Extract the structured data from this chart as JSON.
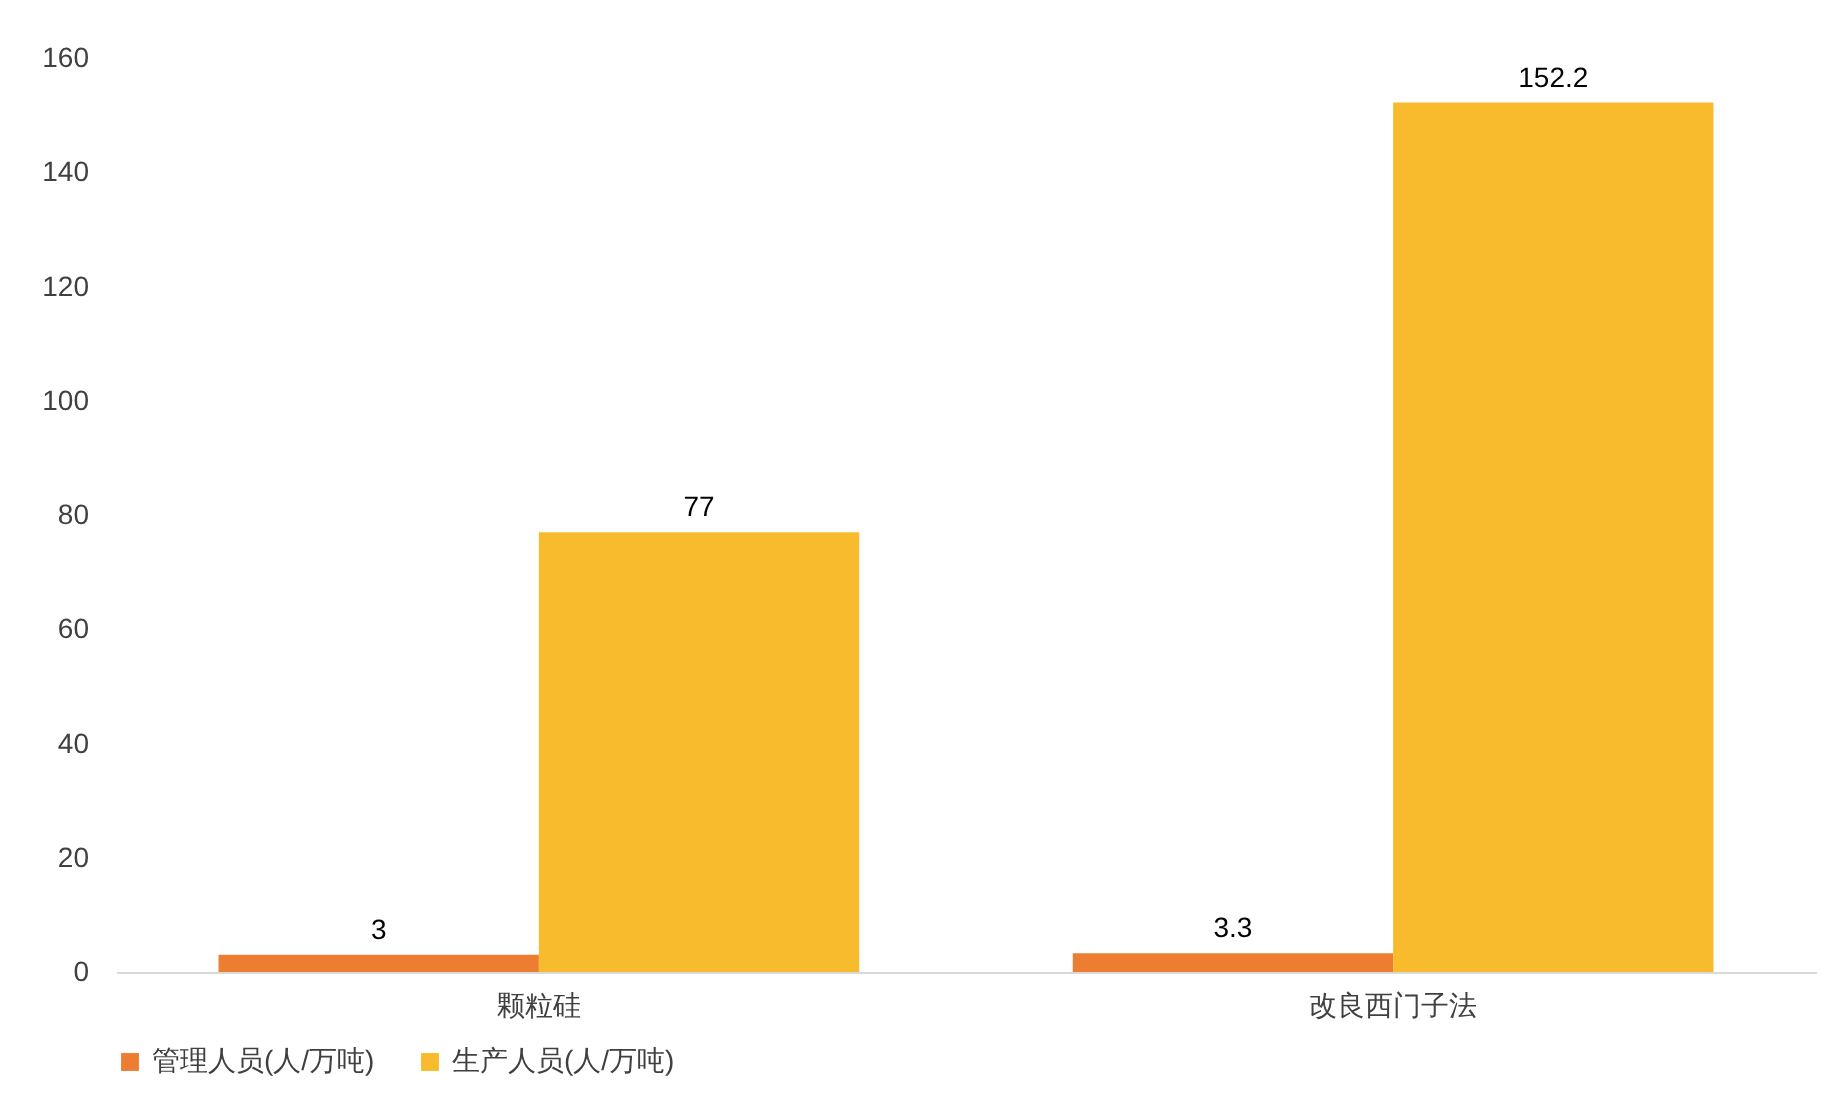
{
  "chart_data": {
    "type": "bar",
    "categories": [
      "颗粒硅",
      "改良西门子法"
    ],
    "series": [
      {
        "name": "管理人员(人/万吨)",
        "color": "#ed7d31",
        "values": [
          3,
          3.3
        ]
      },
      {
        "name": "生产人员(人/万吨)",
        "color": "#f8bb2d",
        "values": [
          77,
          152.2
        ]
      }
    ],
    "ylim": [
      0,
      160
    ],
    "yticks": [
      0,
      20,
      40,
      60,
      80,
      100,
      120,
      140,
      160
    ],
    "grid": false,
    "legend": "bottom",
    "data_labels": true
  }
}
